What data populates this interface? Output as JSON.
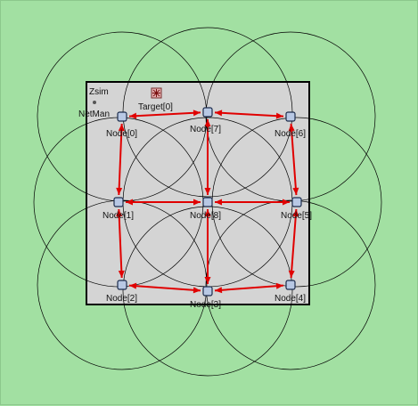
{
  "network": {
    "name": "Zsim",
    "manager_label": "NetMan",
    "target_label": "Target[0]"
  },
  "nodes": [
    {
      "id": 0,
      "label": "Node[0]"
    },
    {
      "id": 1,
      "label": "Node[1]"
    },
    {
      "id": 2,
      "label": "Node[2]"
    },
    {
      "id": 3,
      "label": "Node[3]"
    },
    {
      "id": 4,
      "label": "Node[4]"
    },
    {
      "id": 5,
      "label": "Node[5]"
    },
    {
      "id": 6,
      "label": "Node[6]"
    },
    {
      "id": 7,
      "label": "Node[7]"
    },
    {
      "id": 8,
      "label": "Node[8]"
    }
  ],
  "links": [
    [
      0,
      7
    ],
    [
      7,
      6
    ],
    [
      1,
      8
    ],
    [
      8,
      5
    ],
    [
      2,
      3
    ],
    [
      3,
      4
    ],
    [
      0,
      1
    ],
    [
      1,
      2
    ],
    [
      7,
      8
    ],
    [
      8,
      3
    ],
    [
      6,
      5
    ],
    [
      5,
      4
    ]
  ],
  "colors": {
    "background": "#a2e0a2",
    "area_fill": "#d4d4d4",
    "area_border": "#000000",
    "link": "#e00000",
    "range_circle": "#000000",
    "node_fill": "#b8c8e4",
    "node_border": "#1c2c4c"
  },
  "icons": {
    "node": "node-square-icon",
    "target": "target-icon",
    "manager": "netman-icon"
  }
}
